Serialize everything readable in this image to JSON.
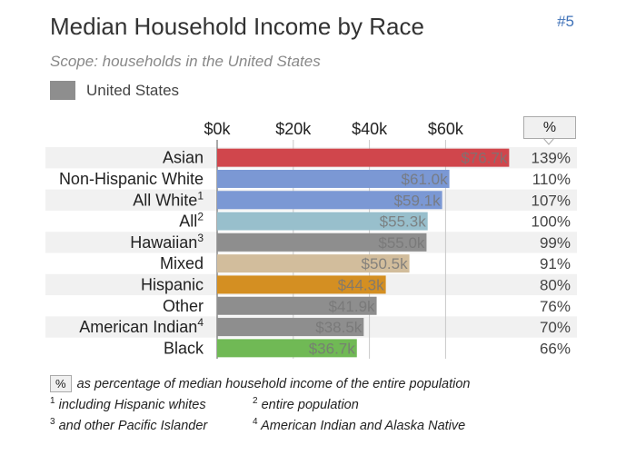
{
  "title": "Median Household Income by Race",
  "rank": "#5",
  "scope": "Scope: households in the United States",
  "legend": {
    "label": "United States",
    "color": "#8e8e8e"
  },
  "pct_header": "%",
  "notes": {
    "pct_box": "%",
    "pct_text": "as percentage of median household income of the entire population",
    "n1_mark": "1",
    "n1_text": "including Hispanic whites",
    "n2_mark": "2",
    "n2_text": "entire population",
    "n3_mark": "3",
    "n3_text": "and other Pacific Islander",
    "n4_mark": "4",
    "n4_text": "American Indian and Alaska Native"
  },
  "chart_data": {
    "type": "bar",
    "orientation": "horizontal",
    "xlim": [
      0,
      80
    ],
    "ticks": [
      0,
      20,
      40,
      60
    ],
    "tick_labels": [
      "$0k",
      "$20k",
      "$40k",
      "$60k"
    ],
    "rows": [
      {
        "category": "Asian",
        "mark": "",
        "value": 76.7,
        "label": "$76.7k",
        "pct": "139%",
        "color": "#d0464c"
      },
      {
        "category": "Non-Hispanic White",
        "mark": "",
        "value": 61.0,
        "label": "$61.0k",
        "pct": "110%",
        "color": "#7b98d4"
      },
      {
        "category": "All White",
        "mark": "1",
        "value": 59.1,
        "label": "$59.1k",
        "pct": "107%",
        "color": "#7b98d4"
      },
      {
        "category": "All",
        "mark": "2",
        "value": 55.3,
        "label": "$55.3k",
        "pct": "100%",
        "color": "#98bfcc"
      },
      {
        "category": "Hawaiian",
        "mark": "3",
        "value": 55.0,
        "label": "$55.0k",
        "pct": "99%",
        "color": "#8e8e8e"
      },
      {
        "category": "Mixed",
        "mark": "",
        "value": 50.5,
        "label": "$50.5k",
        "pct": "91%",
        "color": "#d2bd9c"
      },
      {
        "category": "Hispanic",
        "mark": "",
        "value": 44.3,
        "label": "$44.3k",
        "pct": "80%",
        "color": "#d48f22"
      },
      {
        "category": "Other",
        "mark": "",
        "value": 41.9,
        "label": "$41.9k",
        "pct": "76%",
        "color": "#8e8e8e"
      },
      {
        "category": "American Indian",
        "mark": "4",
        "value": 38.5,
        "label": "$38.5k",
        "pct": "70%",
        "color": "#8e8e8e"
      },
      {
        "category": "Black",
        "mark": "",
        "value": 36.7,
        "label": "$36.7k",
        "pct": "66%",
        "color": "#70b955"
      }
    ]
  }
}
